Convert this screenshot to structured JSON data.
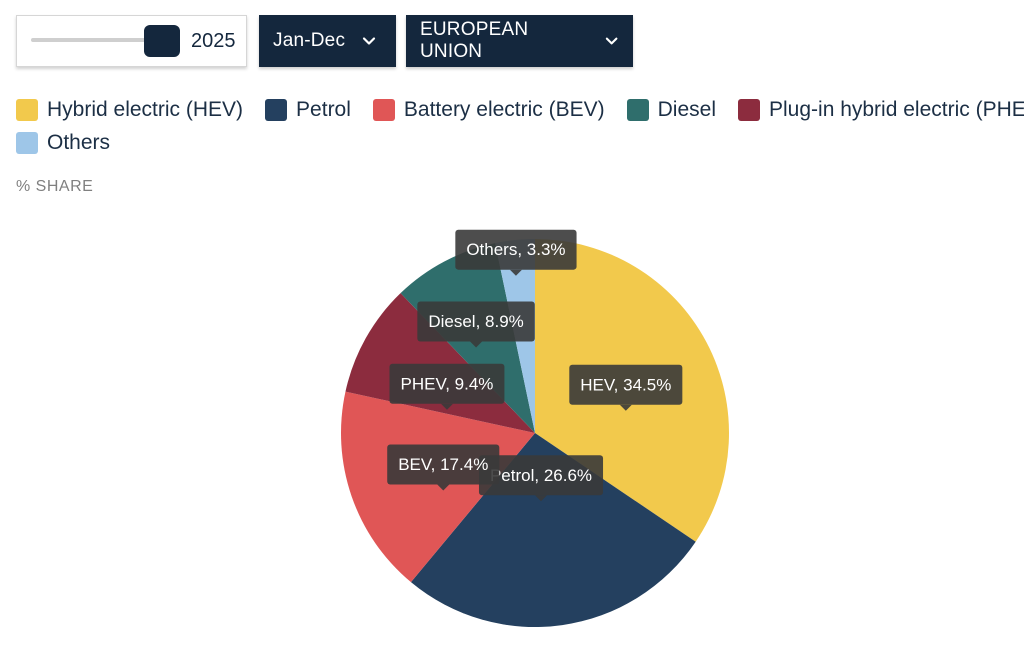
{
  "controls": {
    "year": "2025",
    "year_slider_level": 1.0,
    "period": "Jan-Dec",
    "region": "EUROPEAN UNION"
  },
  "legend": {
    "rows": [
      [
        {
          "label": "Hybrid electric (HEV)",
          "color": "#f2c94c"
        },
        {
          "label": "Petrol",
          "color": "#24405f"
        },
        {
          "label": "Battery electric (BEV)",
          "color": "#e05656"
        },
        {
          "label": "Diesel",
          "color": "#2f6e6c"
        },
        {
          "label": "Plug-in hybrid electric (PHEV)",
          "color": "#8c2c3e"
        }
      ],
      [
        {
          "label": "Others",
          "color": "#9ec6e8"
        }
      ]
    ]
  },
  "chart_data": {
    "type": "pie",
    "ylabel": "% SHARE",
    "slices": [
      {
        "name": "HEV",
        "value": 34.5,
        "color": "#f2c94c",
        "tooltip": "HEV, 34.5%"
      },
      {
        "name": "Petrol",
        "value": 26.6,
        "color": "#24405f",
        "tooltip": "Petrol, 26.6%"
      },
      {
        "name": "BEV",
        "value": 17.4,
        "color": "#e05656",
        "tooltip": "BEV, 17.4%"
      },
      {
        "name": "PHEV",
        "value": 9.4,
        "color": "#8c2c3e",
        "tooltip": "PHEV, 9.4%"
      },
      {
        "name": "Diesel",
        "value": 8.9,
        "color": "#2f6e6c",
        "tooltip": "Diesel, 8.9%"
      },
      {
        "name": "Others",
        "value": 3.3,
        "color": "#9ec6e8",
        "tooltip": "Others, 3.3%"
      }
    ]
  }
}
